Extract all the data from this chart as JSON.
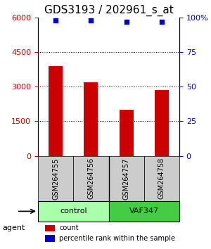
{
  "title": "GDS3193 / 202961_s_at",
  "samples": [
    "GSM264755",
    "GSM264756",
    "GSM264757",
    "GSM264758"
  ],
  "counts": [
    3900,
    3200,
    2000,
    2850
  ],
  "percentile_ranks": [
    98,
    98,
    97,
    97
  ],
  "ylim_left": [
    0,
    6000
  ],
  "yticks_left": [
    0,
    1500,
    3000,
    4500,
    6000
  ],
  "ylim_right": [
    0,
    100
  ],
  "yticks_right": [
    0,
    25,
    50,
    75,
    100
  ],
  "bar_color": "#cc0000",
  "dot_color": "#0000cc",
  "groups": [
    {
      "label": "control",
      "samples": [
        "GSM264755",
        "GSM264756"
      ],
      "color": "#aaffaa"
    },
    {
      "label": "VAF347",
      "samples": [
        "GSM264757",
        "GSM264758"
      ],
      "color": "#44cc44"
    }
  ],
  "agent_label": "agent",
  "legend_count_label": "count",
  "legend_pct_label": "percentile rank within the sample",
  "title_fontsize": 11,
  "axis_label_color_left": "#cc0000",
  "axis_label_color_right": "#0000cc"
}
